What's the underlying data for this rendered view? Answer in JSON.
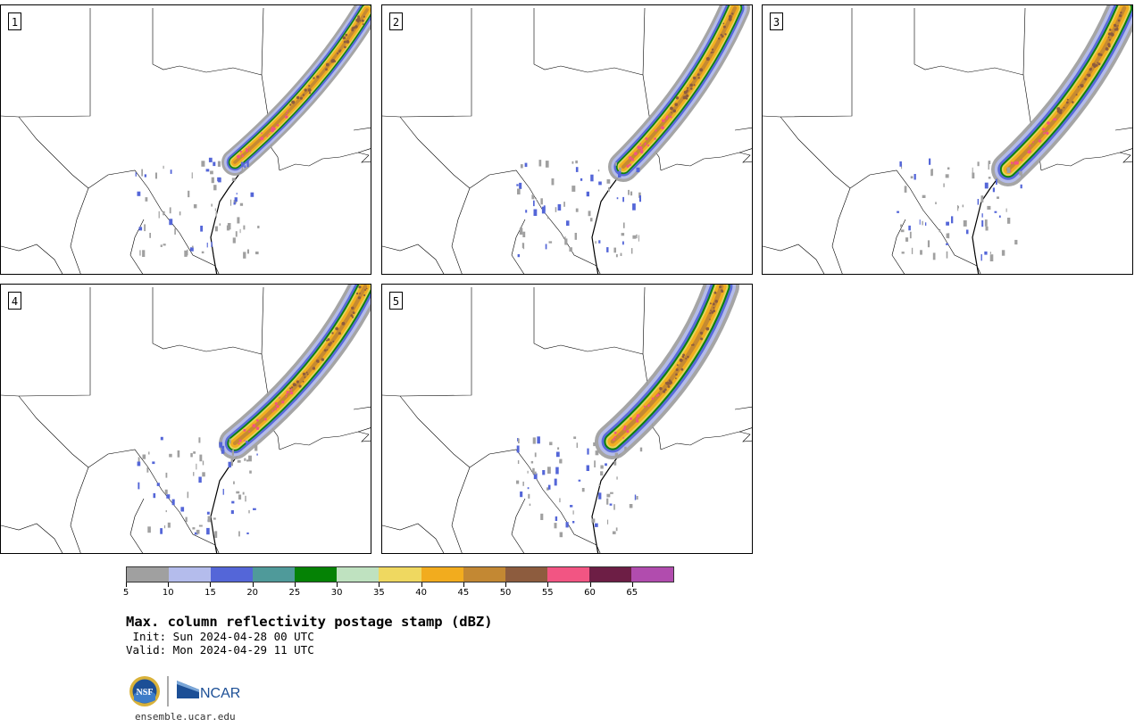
{
  "panels": [
    {
      "label": "1",
      "variant": 0
    },
    {
      "label": "2",
      "variant": 1
    },
    {
      "label": "3",
      "variant": 2
    },
    {
      "label": "4",
      "variant": 3
    },
    {
      "label": "5",
      "variant": 4
    }
  ],
  "colorbar": {
    "colors": [
      "#a0a0a0",
      "#b4bcec",
      "#5466d8",
      "#4f9a9a",
      "#058205",
      "#bfe2c0",
      "#efd860",
      "#f2ac1e",
      "#c38833",
      "#8d5c3e",
      "#f25583",
      "#6d1e45",
      "#b14cae"
    ],
    "ticks": [
      "5",
      "10",
      "15",
      "20",
      "25",
      "30",
      "35",
      "40",
      "45",
      "50",
      "55",
      "60",
      "65"
    ]
  },
  "title": "Max. column reflectivity postage stamp (dBZ)",
  "init": " Init: Sun 2024-04-28 00 UTC",
  "valid": "Valid: Mon 2024-04-29 11 UTC",
  "logos": {
    "nsf": "NSF",
    "ncar": "NCAR"
  },
  "url": "ensemble.ucar.edu"
}
